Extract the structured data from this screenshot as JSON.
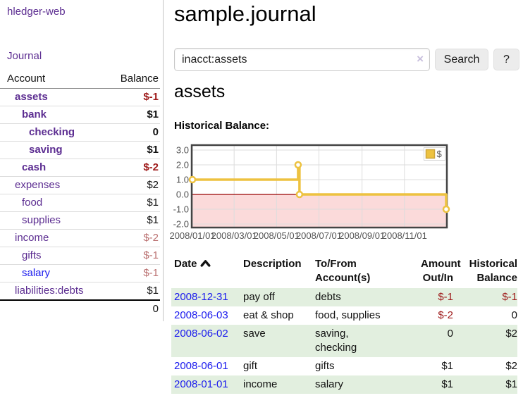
{
  "app": {
    "brand": "hledger-web",
    "nav_journal": "Journal"
  },
  "colors": {
    "link_purple": "#5c2d91",
    "link_blue": "#1a1aee",
    "negative_strong": "#9e1a1a",
    "negative_soft": "#ba7070",
    "row_stripe_green": "#e2efdf",
    "chart_gold": "#edc240"
  },
  "sidebar": {
    "header": {
      "account": "Account",
      "balance": "Balance"
    },
    "accounts": [
      {
        "label": "assets",
        "balance": "$-1",
        "level": 1,
        "bold": true,
        "negative": "strong",
        "link_color": "purple"
      },
      {
        "label": "bank",
        "balance": "$1",
        "level": 2,
        "bold": true,
        "negative": null,
        "link_color": "purple"
      },
      {
        "label": "checking",
        "balance": "0",
        "level": 3,
        "bold": true,
        "negative": null,
        "link_color": "purple"
      },
      {
        "label": "saving",
        "balance": "$1",
        "level": 3,
        "bold": true,
        "negative": null,
        "link_color": "purple"
      },
      {
        "label": "cash",
        "balance": "$-2",
        "level": 2,
        "bold": true,
        "negative": "strong",
        "link_color": "purple"
      },
      {
        "label": "expenses",
        "balance": "$2",
        "level": 1,
        "bold": false,
        "negative": null,
        "link_color": "purple"
      },
      {
        "label": "food",
        "balance": "$1",
        "level": 2,
        "bold": false,
        "negative": null,
        "link_color": "purple"
      },
      {
        "label": "supplies",
        "balance": "$1",
        "level": 2,
        "bold": false,
        "negative": null,
        "link_color": "purple"
      },
      {
        "label": "income",
        "balance": "$-2",
        "level": 1,
        "bold": false,
        "negative": "soft",
        "link_color": "purple"
      },
      {
        "label": "gifts",
        "balance": "$-1",
        "level": 2,
        "bold": false,
        "negative": "soft",
        "link_color": "purple"
      },
      {
        "label": "salary",
        "balance": "$-1",
        "level": 2,
        "bold": false,
        "negative": "soft",
        "link_color": "blue"
      },
      {
        "label": "liabilities:debts",
        "balance": "$1",
        "level": 1,
        "bold": false,
        "negative": null,
        "link_color": "purple"
      }
    ],
    "total": "0"
  },
  "main": {
    "title": "sample.journal",
    "search": {
      "value": "inacct:assets",
      "clear_icon": "×",
      "button": "Search",
      "help_button": "?"
    },
    "section_title": "assets",
    "chart_label": "Historical Balance:"
  },
  "chart_data": {
    "type": "line",
    "title": "Historical Balance",
    "x_start": "2008/01/01",
    "x_end": "2008/12/31",
    "x_ticks": [
      "2008/01/01",
      "2008/03/01",
      "2008/05/01",
      "2008/07/01",
      "2008/09/01",
      "2008/11/01"
    ],
    "y_ticks": [
      3.0,
      2.0,
      1.0,
      0.0,
      -1.0,
      -2.0
    ],
    "ylim": [
      -2.2,
      3.3
    ],
    "grid": true,
    "legend_position": "top-right",
    "negative_region_color": "#fbdada",
    "zero_line_color": "#990000",
    "grid_color": "#dcdcdc",
    "border_color": "#444444",
    "tick_label_color": "#545454",
    "series": [
      {
        "name": "$",
        "color": "#edc240",
        "step": true,
        "points": [
          [
            "2008/01/01",
            1
          ],
          [
            "2008/06/01",
            2
          ],
          [
            "2008/06/02",
            2
          ],
          [
            "2008/06/03",
            0
          ],
          [
            "2008/12/31",
            -1
          ]
        ]
      }
    ]
  },
  "register": {
    "columns": [
      {
        "label": "Date",
        "align": "left"
      },
      {
        "label": "Description",
        "align": "left"
      },
      {
        "label": "To/From\nAccount(s)",
        "align": "left"
      },
      {
        "label": "Amount\nOut/In",
        "align": "right"
      },
      {
        "label": "Historical\nBalance",
        "align": "right"
      }
    ],
    "sort": {
      "column": "Date",
      "direction": "ascending"
    },
    "rows": [
      {
        "date": "2008-12-31",
        "description": "pay off",
        "accounts": "debts",
        "amount": "$-1",
        "amount_negative": true,
        "balance": "$-1",
        "balance_negative": true
      },
      {
        "date": "2008-06-03",
        "description": "eat & shop",
        "accounts": "food, supplies",
        "amount": "$-2",
        "amount_negative": true,
        "balance": "0",
        "balance_negative": false
      },
      {
        "date": "2008-06-02",
        "description": "save",
        "accounts": "saving,\nchecking",
        "amount": "0",
        "amount_negative": false,
        "balance": "$2",
        "balance_negative": false
      },
      {
        "date": "2008-06-01",
        "description": "gift",
        "accounts": "gifts",
        "amount": "$1",
        "amount_negative": false,
        "balance": "$2",
        "balance_negative": false
      },
      {
        "date": "2008-01-01",
        "description": "income",
        "accounts": "salary",
        "amount": "$1",
        "amount_negative": false,
        "balance": "$1",
        "balance_negative": false
      }
    ]
  }
}
